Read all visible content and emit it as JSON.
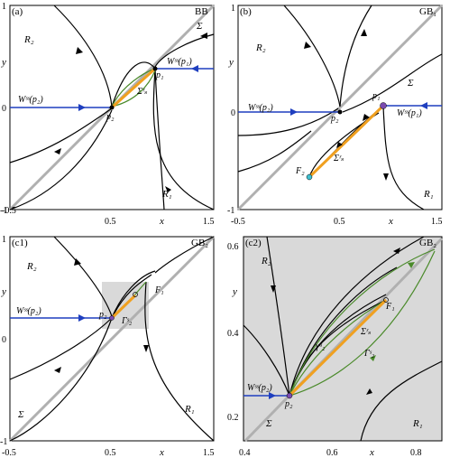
{
  "figure": {
    "panels": [
      {
        "id": "a",
        "tag": "(a)",
        "case": "BB",
        "x_ticks": [
          "-0.5",
          "0.5",
          "1.5"
        ],
        "x_label": "x",
        "y_ticks": [
          "1",
          "0",
          "-1"
        ],
        "y_label": "y",
        "labels": [
          "R₂",
          "R₁",
          "Σ",
          "Wˢˢ(p₂)",
          "Wˢˢ(p₁)",
          "p₂",
          "p₁",
          "Σʳₛ"
        ]
      },
      {
        "id": "b",
        "tag": "(b)",
        "case": "GB₁",
        "x_ticks": [
          "-0.5",
          "0.5",
          "1.5"
        ],
        "x_label": "x",
        "y_ticks": [
          "1",
          "0",
          "-1"
        ],
        "y_label": "y",
        "labels": [
          "R₂",
          "R₁",
          "Σ",
          "Wˢˢ(p₂)",
          "Wˢˢ(p₁)",
          "p₂",
          "p₁",
          "F₂",
          "Σʳₛ"
        ]
      },
      {
        "id": "c1",
        "tag": "(c1)",
        "case": "GB₂",
        "x_ticks": [
          "-0.5",
          "0.5",
          "1.5"
        ],
        "x_label": "x",
        "y_ticks": [
          "1",
          "0",
          "-1"
        ],
        "y_label": "y",
        "labels": [
          "R₂",
          "R₁",
          "Σ",
          "Wˢˢ(p₂)",
          "p₂",
          "F₁",
          "Γˢ₂"
        ]
      },
      {
        "id": "c2",
        "tag": "(c2)",
        "case": "GB₂",
        "x_ticks": [
          "0.4",
          "0.6",
          "0.8"
        ],
        "x_label": "x",
        "y_ticks": [
          "0.6",
          "0.4",
          "0.2"
        ],
        "y_label": "y",
        "labels": [
          "R₂",
          "R₁",
          "Σ",
          "Wˢˢ(p₂)",
          "p₂",
          "F₁",
          "γᵘ₂",
          "Σʳₛ",
          "Γˢ₂"
        ]
      }
    ],
    "colors": {
      "unstable_manifold": "#1f3fbf",
      "switching_line": "#b0b0b0",
      "orbits": "#000000",
      "green_orbits": "#4a8a2a",
      "sliding_segment": "#f0a020",
      "shaded_region": "#d9d9d9",
      "p1_marker": "#7b4bb0",
      "F2_marker": "#40c0d0"
    }
  }
}
